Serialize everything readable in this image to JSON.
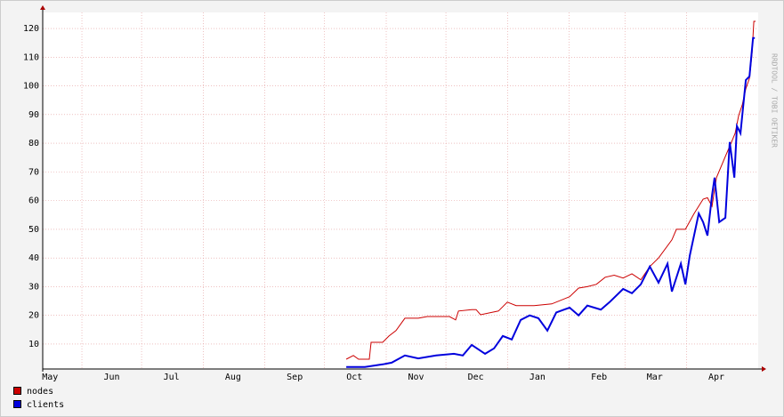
{
  "chart_data": {
    "type": "line",
    "watermark": "RRDTOOL / TOBI OETIKER",
    "xlim": [
      11.3,
      371
    ],
    "xticks": [
      {
        "value": 0,
        "label": "May"
      },
      {
        "value": 31,
        "label": "Jun"
      },
      {
        "value": 61,
        "label": "Jul"
      },
      {
        "value": 92,
        "label": "Aug"
      },
      {
        "value": 123,
        "label": "Sep"
      },
      {
        "value": 153,
        "label": "Oct"
      },
      {
        "value": 184,
        "label": "Nov"
      },
      {
        "value": 214,
        "label": "Dec"
      },
      {
        "value": 245,
        "label": "Jan"
      },
      {
        "value": 276,
        "label": "Feb"
      },
      {
        "value": 304,
        "label": "Mar"
      },
      {
        "value": 335,
        "label": "Apr"
      }
    ],
    "ylim": [
      1.3,
      125.6
    ],
    "yticks": [
      10,
      20,
      30,
      40,
      50,
      60,
      70,
      80,
      90,
      100,
      110,
      120
    ],
    "grid": true,
    "series": [
      {
        "name": "nodes",
        "color": "#cc0000",
        "width": 1,
        "x": [
          163.9,
          167.5,
          170.1,
          175.5,
          176.4,
          182.2,
          185.4,
          188.9,
          193.4,
          200.1,
          204.6,
          215.8,
          218.9,
          220.3,
          227,
          229.2,
          231.4,
          240.4,
          244.9,
          249.3,
          258.3,
          267.2,
          276.2,
          280.7,
          285.1,
          289.6,
          294.1,
          298.6,
          303.1,
          307.5,
          312,
          316.5,
          320.9,
          327.6,
          329.9,
          334.4,
          338.8,
          343.3,
          345.5,
          347.8,
          350,
          354.5,
          357.6,
          359.4,
          361.2,
          363,
          364.8,
          366.6,
          367.9,
          368.8,
          369.7
        ],
        "values": [
          4.7,
          6,
          4.7,
          4.7,
          10.6,
          10.6,
          12.8,
          14.7,
          19,
          19,
          19.6,
          19.6,
          18.4,
          21.5,
          22,
          22,
          20.2,
          21.5,
          24.6,
          23.4,
          23.4,
          24,
          26.5,
          29.5,
          30,
          30.8,
          33.3,
          34,
          33,
          34.5,
          32.4,
          37,
          40,
          46.3,
          50,
          50,
          55.5,
          60.5,
          61,
          58,
          68,
          75.4,
          80.4,
          83.5,
          89.7,
          93.4,
          99,
          102.7,
          111.4,
          122.5,
          122.5
        ]
      },
      {
        "name": "clients",
        "color": "#0000dd",
        "width": 2,
        "x": [
          163.9,
          173.3,
          182.2,
          186.7,
          193.4,
          200.1,
          209.1,
          218,
          222.5,
          227,
          233.7,
          238.2,
          242.6,
          247.1,
          251.6,
          256.1,
          260.5,
          265,
          269.5,
          276.2,
          280.7,
          285.1,
          291.9,
          296.3,
          303.1,
          307.5,
          312,
          316.5,
          320.9,
          325.4,
          327.6,
          332.1,
          334.4,
          336.6,
          341.1,
          343.3,
          345.5,
          347.8,
          349.1,
          351.4,
          354.5,
          356.7,
          359,
          360.3,
          362.1,
          364.8,
          366.6,
          368.4,
          369.3
        ],
        "values": [
          2,
          2,
          2.9,
          3.5,
          6,
          5,
          6,
          6.6,
          6,
          9.7,
          6.6,
          8.5,
          12.8,
          11.6,
          18.4,
          20,
          19,
          14.7,
          21,
          22.7,
          20,
          23.4,
          22,
          24.6,
          29.2,
          27.7,
          30.8,
          37,
          31.4,
          38,
          28.3,
          38,
          30.8,
          40.8,
          55.5,
          52.5,
          47.8,
          61.8,
          68,
          52.5,
          54,
          80.4,
          68,
          86,
          83.5,
          102,
          103.3,
          116.7,
          116.7
        ]
      }
    ]
  }
}
